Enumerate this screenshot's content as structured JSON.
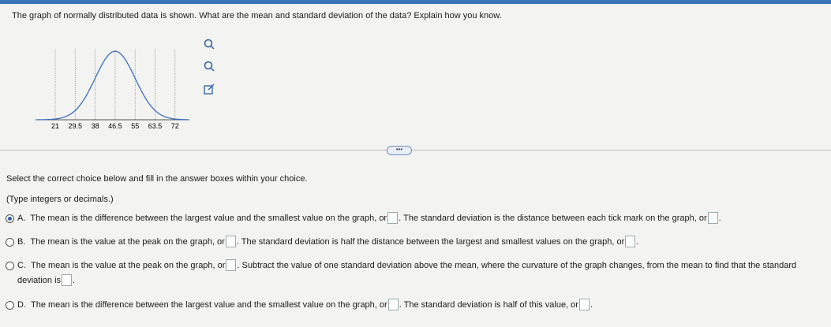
{
  "question": "The graph of normally distributed data is shown. What are the mean and standard deviation of the data? Explain how you know.",
  "graph": {
    "xticks": [
      "21",
      "29.5",
      "38",
      "46.5",
      "55",
      "63.5",
      "72"
    ]
  },
  "instruction": "Select the correct choice below and fill in the answer boxes within your choice.",
  "note": "(Type integers or decimals.)",
  "choices": [
    {
      "letter": "A.",
      "parts": [
        "The mean is the difference between the largest value and the smallest value on the graph, or",
        ". The standard deviation is the distance between each tick mark on the graph, or",
        "."
      ]
    },
    {
      "letter": "B.",
      "parts": [
        "The mean is the value at the peak on the graph, or",
        ". The standard deviation is half the distance between the largest and smallest values on the graph, or",
        "."
      ]
    },
    {
      "letter": "C.",
      "parts": [
        "The mean is the value at the peak on the graph, or",
        ". Subtract the value of one standard deviation above the mean, where the curvature of the graph changes, from the mean to find that the standard deviation is",
        "."
      ]
    },
    {
      "letter": "D.",
      "parts": [
        "The mean is the difference between the largest value and the smallest value on the graph, or",
        ". The standard deviation is half of this value, or",
        "."
      ]
    }
  ]
}
